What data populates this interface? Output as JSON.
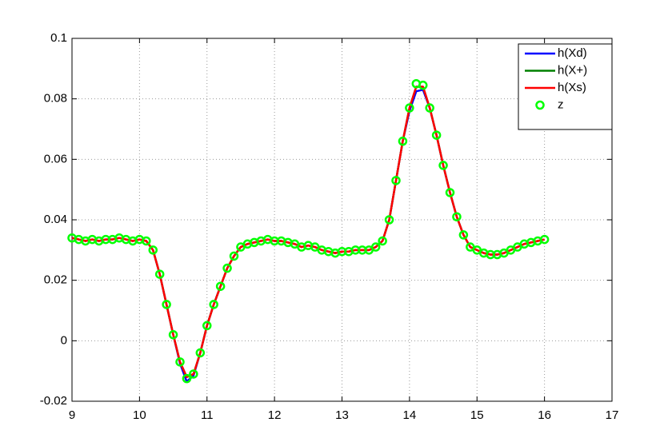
{
  "chart_data": {
    "type": "line",
    "x": [
      9.0,
      9.1,
      9.2,
      9.3,
      9.4,
      9.5,
      9.6,
      9.7,
      9.8,
      9.9,
      10.0,
      10.1,
      10.2,
      10.3,
      10.4,
      10.5,
      10.6,
      10.7,
      10.8,
      10.9,
      11.0,
      11.1,
      11.2,
      11.3,
      11.4,
      11.5,
      11.6,
      11.7,
      11.8,
      11.9,
      12.0,
      12.1,
      12.2,
      12.3,
      12.4,
      12.5,
      12.6,
      12.7,
      12.8,
      12.9,
      13.0,
      13.1,
      13.2,
      13.3,
      13.4,
      13.5,
      13.6,
      13.7,
      13.8,
      13.9,
      14.0,
      14.1,
      14.2,
      14.3,
      14.4,
      14.5,
      14.6,
      14.7,
      14.8,
      14.9,
      15.0,
      15.1,
      15.2,
      15.3,
      15.4,
      15.5,
      15.6,
      15.7,
      15.8,
      15.9,
      16.0
    ],
    "series": [
      {
        "name": "h(Xd)",
        "color": "#0000ff",
        "style": "line",
        "values": [
          0.034,
          0.0335,
          0.033,
          0.0335,
          0.033,
          0.0335,
          0.0335,
          0.034,
          0.0335,
          0.033,
          0.0335,
          0.033,
          0.03,
          0.022,
          0.012,
          0.002,
          -0.0075,
          -0.0135,
          -0.0115,
          -0.004,
          0.005,
          0.012,
          0.018,
          0.024,
          0.028,
          0.031,
          0.032,
          0.0325,
          0.033,
          0.0335,
          0.033,
          0.033,
          0.0325,
          0.032,
          0.031,
          0.0315,
          0.031,
          0.03,
          0.0295,
          0.029,
          0.0295,
          0.0295,
          0.03,
          0.03,
          0.03,
          0.031,
          0.033,
          0.04,
          0.053,
          0.066,
          0.076,
          0.0825,
          0.083,
          0.077,
          0.068,
          0.058,
          0.049,
          0.041,
          0.035,
          0.031,
          0.03,
          0.029,
          0.0285,
          0.0285,
          0.029,
          0.03,
          0.031,
          0.032,
          0.0325,
          0.033,
          0.0335
        ]
      },
      {
        "name": "h(X+)",
        "color": "#008000",
        "style": "line",
        "values": [
          0.034,
          0.0335,
          0.033,
          0.0335,
          0.033,
          0.0335,
          0.0335,
          0.034,
          0.0335,
          0.033,
          0.0335,
          0.033,
          0.03,
          0.022,
          0.012,
          0.002,
          -0.007,
          -0.012,
          -0.011,
          -0.004,
          0.005,
          0.012,
          0.018,
          0.024,
          0.028,
          0.031,
          0.032,
          0.0325,
          0.033,
          0.0335,
          0.033,
          0.033,
          0.0325,
          0.032,
          0.031,
          0.0315,
          0.031,
          0.03,
          0.0295,
          0.029,
          0.0295,
          0.0295,
          0.03,
          0.03,
          0.03,
          0.031,
          0.033,
          0.04,
          0.053,
          0.066,
          0.077,
          0.084,
          0.084,
          0.077,
          0.068,
          0.058,
          0.049,
          0.041,
          0.035,
          0.031,
          0.03,
          0.029,
          0.0285,
          0.0285,
          0.029,
          0.03,
          0.031,
          0.032,
          0.0325,
          0.033,
          0.0335
        ]
      },
      {
        "name": "h(Xs)",
        "color": "#ff0000",
        "style": "line",
        "values": [
          0.034,
          0.0335,
          0.033,
          0.0335,
          0.033,
          0.0335,
          0.0335,
          0.034,
          0.0335,
          0.033,
          0.0335,
          0.033,
          0.03,
          0.022,
          0.012,
          0.002,
          -0.007,
          -0.012,
          -0.011,
          -0.004,
          0.005,
          0.012,
          0.018,
          0.024,
          0.028,
          0.031,
          0.032,
          0.0325,
          0.033,
          0.0335,
          0.033,
          0.033,
          0.0325,
          0.032,
          0.031,
          0.0315,
          0.031,
          0.03,
          0.0295,
          0.029,
          0.0295,
          0.0295,
          0.03,
          0.03,
          0.03,
          0.031,
          0.033,
          0.04,
          0.053,
          0.066,
          0.077,
          0.084,
          0.084,
          0.077,
          0.068,
          0.058,
          0.049,
          0.041,
          0.035,
          0.031,
          0.03,
          0.029,
          0.0285,
          0.0285,
          0.029,
          0.03,
          0.031,
          0.032,
          0.0325,
          0.033,
          0.0335
        ]
      },
      {
        "name": "z",
        "color": "#00ff00",
        "style": "marker",
        "values": [
          0.034,
          0.0335,
          0.033,
          0.0335,
          0.033,
          0.0335,
          0.0335,
          0.034,
          0.0335,
          0.033,
          0.0335,
          0.033,
          0.03,
          0.022,
          0.012,
          0.002,
          -0.007,
          -0.0125,
          -0.011,
          -0.004,
          0.005,
          0.012,
          0.018,
          0.024,
          0.028,
          0.031,
          0.032,
          0.0325,
          0.033,
          0.0335,
          0.033,
          0.033,
          0.0325,
          0.032,
          0.031,
          0.0315,
          0.031,
          0.03,
          0.0295,
          0.029,
          0.0295,
          0.0295,
          0.03,
          0.03,
          0.03,
          0.031,
          0.033,
          0.04,
          0.053,
          0.066,
          0.077,
          0.085,
          0.0845,
          0.077,
          0.068,
          0.058,
          0.049,
          0.041,
          0.035,
          0.031,
          0.03,
          0.029,
          0.0285,
          0.0285,
          0.029,
          0.03,
          0.031,
          0.032,
          0.0325,
          0.033,
          0.0335
        ]
      }
    ],
    "xlim": [
      9,
      17
    ],
    "xticks": [
      9,
      10,
      11,
      12,
      13,
      14,
      15,
      16,
      17
    ],
    "ylim": [
      -0.02,
      0.1
    ],
    "yticks": [
      -0.02,
      0,
      0.02,
      0.04,
      0.06,
      0.08,
      0.1
    ],
    "grid": true,
    "legend": "top-right"
  }
}
